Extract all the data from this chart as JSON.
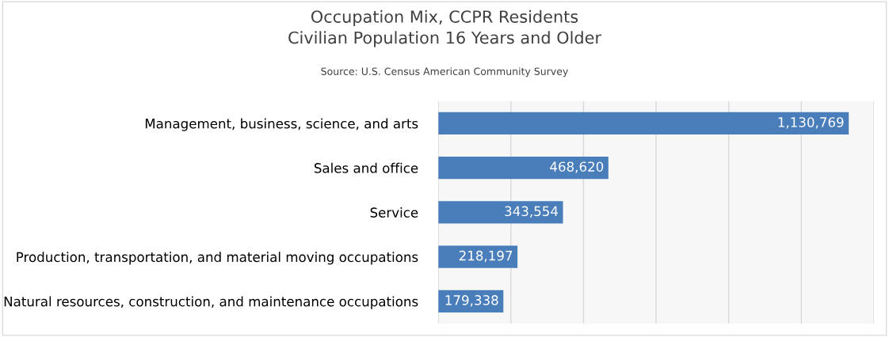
{
  "chart_data": {
    "type": "bar",
    "orientation": "horizontal",
    "title": "Occupation Mix, CCPR Residents\nCivilian Population 16 Years and Older",
    "annotations": [
      "Source: U.S. Census American Community Survey"
    ],
    "categories": [
      "Management, business, science, and arts",
      "Sales and office",
      "Service",
      "Production, transportation, and material moving occupations",
      "Natural resources, construction, and maintenance occupations"
    ],
    "values": [
      1130769,
      468620,
      343554,
      218197,
      179338
    ],
    "value_labels": [
      "1,130,769",
      "468,620",
      "343,554",
      "218,197",
      "179,338"
    ],
    "color": "#4a7ebb",
    "xlim": [
      0,
      1200000
    ],
    "xticks": [
      {
        "value": 0,
        "label": null
      },
      {
        "value": 200000,
        "label": null
      },
      {
        "value": 400000,
        "label": null
      },
      {
        "value": 600000,
        "label": null
      },
      {
        "value": 800000,
        "label": null
      },
      {
        "value": 1000000,
        "label": null
      },
      {
        "value": 1200000,
        "label": null
      }
    ],
    "grid": "x",
    "tick_labels": "y"
  }
}
